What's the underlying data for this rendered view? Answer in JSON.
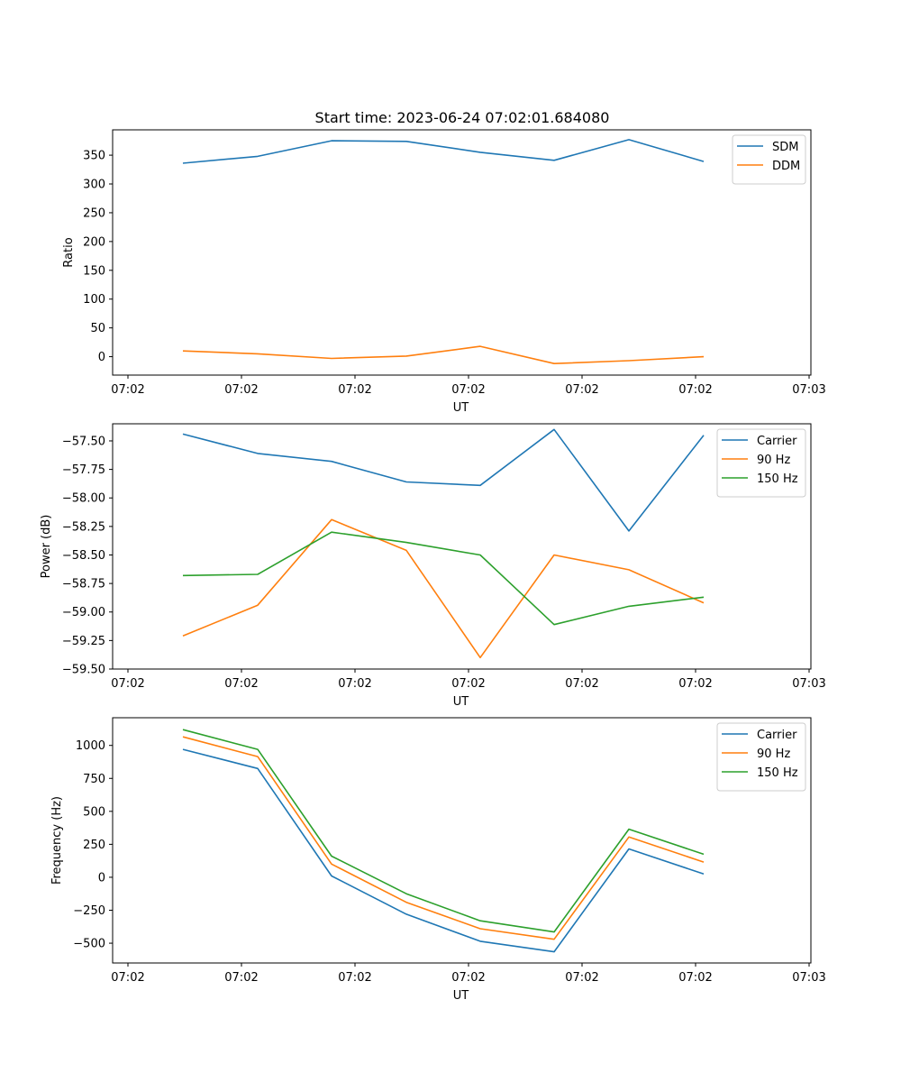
{
  "figure": {
    "title": "Start time: 2023-06-24 07:02:01.684080"
  },
  "chart_data": [
    {
      "type": "line",
      "title": "Start time: 2023-06-24 07:02:01.684080",
      "xlabel": "UT",
      "ylabel": "Ratio",
      "x_tick_labels": [
        "07:02",
        "07:02",
        "07:02",
        "07:02",
        "07:02",
        "07:02",
        "07:03"
      ],
      "y_ticks": [
        0,
        50,
        100,
        150,
        200,
        250,
        300,
        350
      ],
      "ylim": [
        -32,
        394
      ],
      "grid": false,
      "legend_position": "top-right",
      "series": [
        {
          "name": "SDM",
          "color": "#1f77b4",
          "values": [
            336,
            348,
            375,
            374,
            355,
            341,
            377,
            339
          ]
        },
        {
          "name": "DDM",
          "color": "#ff7f0e",
          "values": [
            10,
            5,
            -3,
            1,
            18,
            -12,
            -7,
            0
          ]
        }
      ]
    },
    {
      "type": "line",
      "title": "",
      "xlabel": "UT",
      "ylabel": "Power (dB)",
      "x_tick_labels": [
        "07:02",
        "07:02",
        "07:02",
        "07:02",
        "07:02",
        "07:02",
        "07:03"
      ],
      "y_ticks": [
        -57.5,
        -57.75,
        -58.0,
        -58.25,
        -58.5,
        -58.75,
        -59.0,
        -59.25,
        -59.5
      ],
      "y_tick_labels": [
        "−57.50",
        "−57.75",
        "−58.00",
        "−58.25",
        "−58.50",
        "−58.75",
        "−59.00",
        "−59.25",
        "−59.50"
      ],
      "ylim": [
        -59.5,
        -57.35
      ],
      "grid": false,
      "legend_position": "top-right",
      "series": [
        {
          "name": "Carrier",
          "color": "#1f77b4",
          "values": [
            -57.44,
            -57.61,
            -57.68,
            -57.86,
            -57.89,
            -57.4,
            -58.29,
            -57.45
          ]
        },
        {
          "name": "90 Hz",
          "color": "#ff7f0e",
          "values": [
            -59.21,
            -58.94,
            -58.19,
            -58.46,
            -59.4,
            -58.5,
            -58.63,
            -58.92
          ]
        },
        {
          "name": "150 Hz",
          "color": "#2ca02c",
          "values": [
            -58.68,
            -58.67,
            -58.3,
            -58.39,
            -58.5,
            -59.11,
            -58.95,
            -58.87
          ]
        }
      ]
    },
    {
      "type": "line",
      "title": "",
      "xlabel": "UT",
      "ylabel": "Frequency (Hz)",
      "x_tick_labels": [
        "07:02",
        "07:02",
        "07:02",
        "07:02",
        "07:02",
        "07:02",
        "07:03"
      ],
      "y_ticks": [
        -500,
        -250,
        0,
        250,
        500,
        750,
        1000
      ],
      "y_tick_labels": [
        "−500",
        "−250",
        "0",
        "250",
        "500",
        "750",
        "1000"
      ],
      "ylim": [
        -650,
        1210
      ],
      "grid": false,
      "legend_position": "top-right",
      "series": [
        {
          "name": "Carrier",
          "color": "#1f77b4",
          "values": [
            970,
            825,
            10,
            -280,
            -485,
            -565,
            215,
            25
          ]
        },
        {
          "name": "90 Hz",
          "color": "#ff7f0e",
          "values": [
            1065,
            915,
            100,
            -190,
            -390,
            -470,
            305,
            115
          ]
        },
        {
          "name": "150 Hz",
          "color": "#2ca02c",
          "values": [
            1120,
            970,
            160,
            -125,
            -330,
            -415,
            365,
            175
          ]
        }
      ]
    }
  ]
}
